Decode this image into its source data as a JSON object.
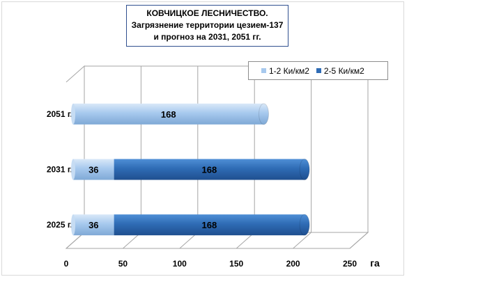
{
  "title": {
    "line1": "КОВЧИЦКОЕ ЛЕСНИЧЕСТВО.",
    "line2": "Загрязнение территории цезием-137",
    "line3": "и прогноз на 2031, 2051 гг."
  },
  "legend": {
    "position": "top-right"
  },
  "colors": {
    "series_1_2": "#a7c9ee",
    "series_2_5": "#2f6cb5",
    "grid": "#a6a6a6",
    "title_border": "#2f4f8f"
  },
  "chart_data": {
    "type": "bar",
    "orientation": "horizontal",
    "stacked": true,
    "title": "КОВЧИЦКОЕ ЛЕСНИЧЕСТВО. Загрязнение территории цезием-137 и прогноз на 2031, 2051 гг.",
    "categories": [
      "2051 г.",
      "2031 г.",
      "2025 г."
    ],
    "series": [
      {
        "name": "1-2 Ки/км2",
        "values": [
          168,
          36,
          36
        ]
      },
      {
        "name": "2-5 Ки/км2",
        "values": [
          0,
          168,
          168
        ]
      }
    ],
    "x_ticks": [
      "0",
      "50",
      "100",
      "150",
      "200",
      "250"
    ],
    "xlabel": "га",
    "xlim": [
      0,
      250
    ],
    "grid": true
  }
}
